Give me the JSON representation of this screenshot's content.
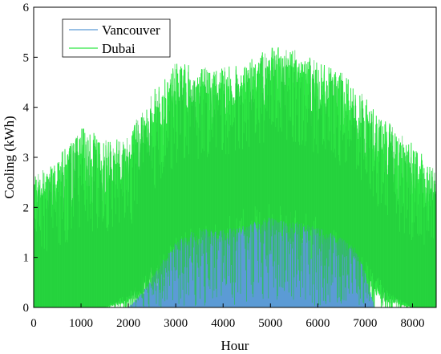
{
  "chart_data": {
    "type": "line",
    "xlabel": "Hour",
    "ylabel": "Cooling (kWh)",
    "xlim": [
      0,
      8500
    ],
    "ylim": [
      0,
      6
    ],
    "xticks": [
      0,
      1000,
      2000,
      3000,
      4000,
      5000,
      6000,
      7000,
      8000
    ],
    "yticks": [
      0,
      1,
      2,
      3,
      4,
      5,
      6
    ],
    "grid": false,
    "legend_position": "top-left",
    "series": [
      {
        "name": "Vancouver",
        "color": "#5b9bd5",
        "envelope_x": [
          0,
          2000,
          2300,
          2700,
          3000,
          3300,
          3600,
          4000,
          4400,
          4800,
          5000,
          5200,
          5600,
          6000,
          6400,
          6800,
          7000,
          7200,
          8500
        ],
        "envelope_y": [
          0,
          0,
          0.3,
          0.9,
          1.3,
          1.5,
          1.6,
          1.55,
          1.65,
          1.75,
          1.8,
          1.75,
          1.7,
          1.6,
          1.45,
          1.2,
          0.7,
          0,
          0
        ]
      },
      {
        "name": "Dubai",
        "color": "#2ee844",
        "envelope_x": [
          0,
          500,
          1000,
          1500,
          2000,
          2500,
          3000,
          3500,
          4000,
          4500,
          5000,
          5500,
          6000,
          6500,
          7000,
          7500,
          8000,
          8500
        ],
        "envelope_y": [
          2.6,
          3.0,
          3.6,
          3.4,
          3.5,
          4.3,
          4.9,
          4.8,
          4.8,
          4.9,
          5.2,
          5.2,
          4.9,
          4.7,
          4.2,
          3.7,
          3.3,
          2.7
        ],
        "lower_envelope_x": [
          0,
          1500,
          2000,
          2500,
          3000,
          3500,
          4000,
          4500,
          5000,
          5500,
          6000,
          6500,
          7000,
          7500,
          8000,
          8500
        ],
        "lower_envelope_y": [
          0,
          0,
          0.3,
          0.9,
          1.4,
          1.7,
          1.8,
          2.0,
          2.1,
          2.0,
          1.8,
          1.5,
          1.0,
          0.3,
          0,
          0
        ]
      }
    ]
  }
}
